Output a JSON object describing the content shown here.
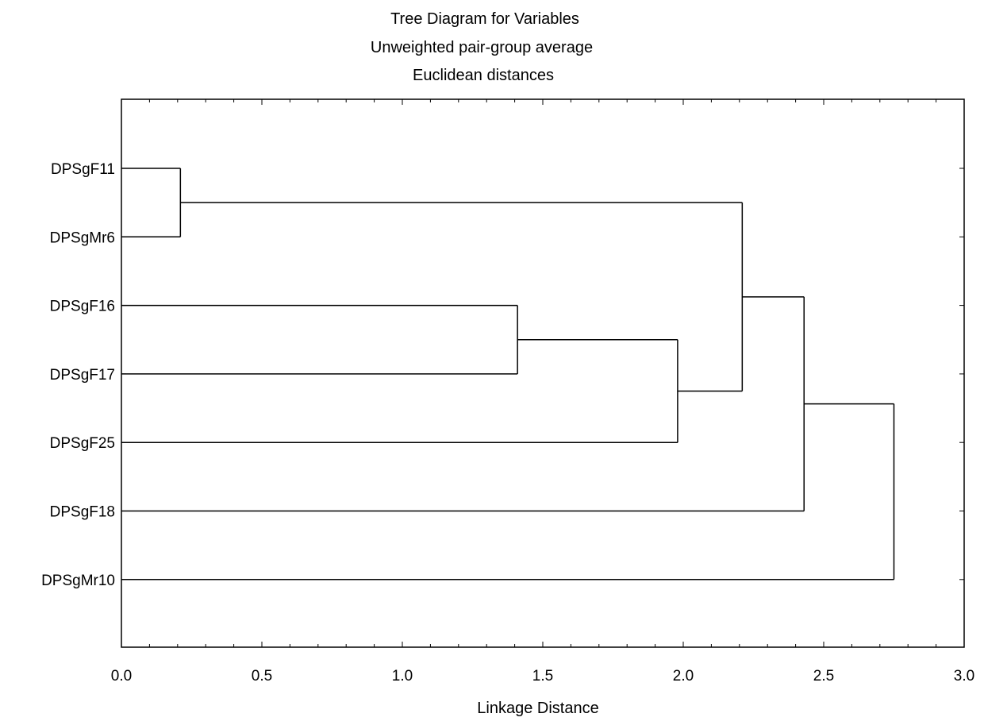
{
  "chart_data": {
    "type": "dendrogram",
    "title": "Tree Diagram for  Variables",
    "subtitle": [
      "Unweighted pair-group average",
      "Euclidean distances"
    ],
    "xlabel": "Linkage Distance",
    "xlim": [
      0,
      3
    ],
    "x_ticks": [
      "0.0",
      "0.5",
      "1.0",
      "1.5",
      "2.0",
      "2.5",
      "3.0"
    ],
    "x_tick_values": [
      0,
      0.5,
      1.0,
      1.5,
      2.0,
      2.5,
      3.0
    ],
    "leaves": [
      "DPSgF11",
      "DPSgMr6",
      "DPSgF16",
      "DPSgF17",
      "DPSgF25",
      "DPSgF18",
      "DPSgMr10"
    ],
    "merges": [
      {
        "left": "DPSgF11",
        "right": "DPSgMr6",
        "distance": 0.21,
        "cluster": "C1"
      },
      {
        "left": "DPSgF16",
        "right": "DPSgF17",
        "distance": 1.41,
        "cluster": "C2"
      },
      {
        "left": "C2",
        "right": "DPSgF25",
        "distance": 1.98,
        "cluster": "C3"
      },
      {
        "left": "C1",
        "right": "C3",
        "distance": 2.21,
        "cluster": "C4"
      },
      {
        "left": "C4",
        "right": "DPSgF18",
        "distance": 2.43,
        "cluster": "C5"
      },
      {
        "left": "C5",
        "right": "DPSgMr10",
        "distance": 2.75,
        "cluster": "C6"
      }
    ],
    "grid": false,
    "line_color": "#000000",
    "background": "#ffffff"
  }
}
